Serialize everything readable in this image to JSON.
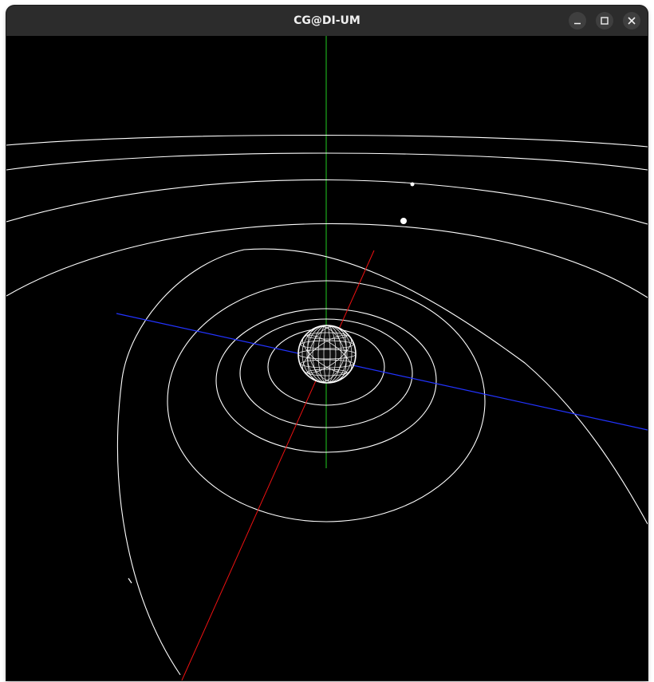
{
  "window": {
    "title": "CG@DI-UM"
  },
  "titlebar_buttons": {
    "minimize_icon": "minimize-icon",
    "maximize_icon": "maximize-icon",
    "close_icon": "close-icon"
  },
  "scene": {
    "background_color": "#000000",
    "orbit_color": "#ffffff",
    "axis_colors": {
      "x": "#ff0000",
      "y": "#00ff00",
      "z": "#0000ff"
    },
    "sun_style": "white wireframe sphere"
  }
}
